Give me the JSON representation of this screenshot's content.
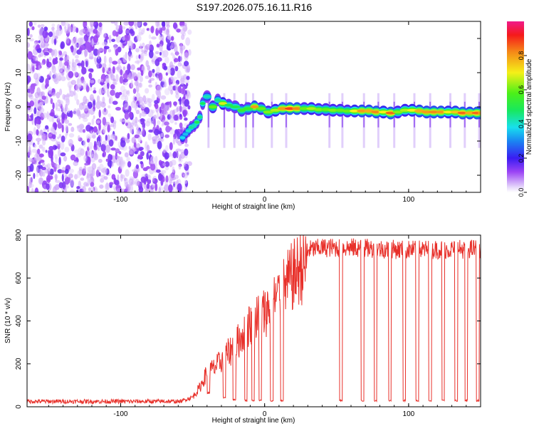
{
  "figure_title": "S197.2026.075.16.11.R16",
  "colors": {
    "snr_line": "#e8302a",
    "noise_purple": "#7a2cf0",
    "noise_light": "#dcc6fa",
    "axis": "#000000"
  },
  "chart_data": [
    {
      "type": "heatmap",
      "title": "",
      "xlabel": "Height of straight line (km)",
      "ylabel": "Frequency (Hz)",
      "xlim": [
        -165,
        150
      ],
      "ylim": [
        -25,
        25
      ],
      "x_ticks": [
        -100,
        0,
        100
      ],
      "x_tick_labels": [
        "-100",
        "0",
        "100"
      ],
      "y_ticks": [
        -20,
        -10,
        0,
        10,
        20
      ],
      "y_tick_labels": [
        "-20",
        "-10",
        "0",
        "10",
        "20"
      ],
      "noise_region_x": [
        -165,
        -60
      ],
      "transition_x": [
        -60,
        -40
      ],
      "ridge": [
        {
          "x": -58,
          "y": -9,
          "amp": 0.38
        },
        {
          "x": -56,
          "y": -8,
          "amp": 0.35
        },
        {
          "x": -54,
          "y": -7,
          "amp": 0.4
        },
        {
          "x": -52,
          "y": -6,
          "amp": 0.45
        },
        {
          "x": -50,
          "y": -5.5,
          "amp": 0.42
        },
        {
          "x": -48,
          "y": -4.5,
          "amp": 0.5
        },
        {
          "x": -46,
          "y": -3,
          "amp": 0.45
        },
        {
          "x": -44,
          "y": 1,
          "amp": 0.48
        },
        {
          "x": -42,
          "y": 3,
          "amp": 0.42
        },
        {
          "x": -38,
          "y": 0,
          "amp": 0.6
        },
        {
          "x": -34,
          "y": 2,
          "amp": 0.45
        },
        {
          "x": -31,
          "y": 1,
          "amp": 0.68
        },
        {
          "x": -27,
          "y": 0.5,
          "amp": 0.5
        },
        {
          "x": -23,
          "y": 0,
          "amp": 0.5
        },
        {
          "x": -18,
          "y": -1,
          "amp": 0.55
        },
        {
          "x": -14,
          "y": -0.5,
          "amp": 0.55
        },
        {
          "x": -9,
          "y": 0,
          "amp": 0.8
        },
        {
          "x": -5,
          "y": -0.5,
          "amp": 0.6
        },
        {
          "x": 0,
          "y": -1.5,
          "amp": 0.62
        },
        {
          "x": 5,
          "y": -1,
          "amp": 0.65
        },
        {
          "x": 10,
          "y": -0.5,
          "amp": 0.8
        },
        {
          "x": 15,
          "y": -0.5,
          "amp": 0.88
        },
        {
          "x": 20,
          "y": -0.5,
          "amp": 0.82
        },
        {
          "x": 25,
          "y": -0.5,
          "amp": 0.6
        },
        {
          "x": 30,
          "y": -0.5,
          "amp": 0.65
        },
        {
          "x": 35,
          "y": -0.8,
          "amp": 0.62
        },
        {
          "x": 40,
          "y": -0.8,
          "amp": 0.6
        },
        {
          "x": 45,
          "y": -1,
          "amp": 0.62
        },
        {
          "x": 50,
          "y": -1,
          "amp": 0.6
        },
        {
          "x": 55,
          "y": -1.2,
          "amp": 0.6
        },
        {
          "x": 60,
          "y": -1.2,
          "amp": 0.7
        },
        {
          "x": 65,
          "y": -1.2,
          "amp": 0.8
        },
        {
          "x": 70,
          "y": -1.2,
          "amp": 0.78
        },
        {
          "x": 75,
          "y": -1.5,
          "amp": 0.82
        },
        {
          "x": 80,
          "y": -1.5,
          "amp": 0.7
        },
        {
          "x": 85,
          "y": -1.8,
          "amp": 0.85
        },
        {
          "x": 90,
          "y": -1.5,
          "amp": 0.62
        },
        {
          "x": 95,
          "y": -1,
          "amp": 0.65
        },
        {
          "x": 100,
          "y": -1,
          "amp": 0.7
        },
        {
          "x": 105,
          "y": -1.2,
          "amp": 0.78
        },
        {
          "x": 110,
          "y": -1.5,
          "amp": 0.8
        },
        {
          "x": 115,
          "y": -1.5,
          "amp": 0.82
        },
        {
          "x": 120,
          "y": -1.5,
          "amp": 0.8
        },
        {
          "x": 125,
          "y": -1.5,
          "amp": 0.7
        },
        {
          "x": 130,
          "y": -1.5,
          "amp": 0.75
        },
        {
          "x": 135,
          "y": -1.8,
          "amp": 0.85
        },
        {
          "x": 140,
          "y": -1.8,
          "amp": 0.78
        },
        {
          "x": 145,
          "y": -1.8,
          "amp": 0.85
        },
        {
          "x": 150,
          "y": -1.8,
          "amp": 0.8
        }
      ],
      "dropouts_x": [
        -39,
        -28,
        -21,
        -13,
        -8,
        5,
        15,
        45,
        54,
        69,
        79,
        90,
        104,
        115,
        129,
        139,
        149
      ],
      "colorbar": {
        "label": "Normalized spectral amplitude",
        "range": [
          0,
          1
        ],
        "ticks": [
          0.0,
          0.2,
          0.4,
          0.6,
          0.8
        ],
        "tick_labels": [
          "0.0",
          "0.2",
          "0.4",
          "0.6",
          "0.8"
        ]
      }
    },
    {
      "type": "line",
      "title": "",
      "xlabel": "Height of straight line (km)",
      "ylabel": "SNR (10 * v/v)",
      "xlim": [
        -165,
        150
      ],
      "ylim": [
        0,
        800
      ],
      "x_ticks": [
        -100,
        0,
        100
      ],
      "x_tick_labels": [
        "-100",
        "0",
        "100"
      ],
      "y_ticks": [
        0,
        200,
        400,
        600,
        800
      ],
      "y_tick_labels": [
        "0",
        "200",
        "400",
        "600",
        "800"
      ],
      "envelope": [
        {
          "x": -165,
          "y": 25
        },
        {
          "x": -60,
          "y": 25
        },
        {
          "x": -50,
          "y": 50
        },
        {
          "x": -45,
          "y": 100
        },
        {
          "x": -40,
          "y": 180
        },
        {
          "x": -35,
          "y": 200
        },
        {
          "x": -30,
          "y": 240
        },
        {
          "x": -25,
          "y": 280
        },
        {
          "x": -20,
          "y": 320
        },
        {
          "x": -15,
          "y": 380
        },
        {
          "x": -10,
          "y": 430
        },
        {
          "x": -5,
          "y": 460
        },
        {
          "x": 0,
          "y": 490
        },
        {
          "x": 5,
          "y": 530
        },
        {
          "x": 10,
          "y": 580
        },
        {
          "x": 15,
          "y": 630
        },
        {
          "x": 20,
          "y": 680
        },
        {
          "x": 25,
          "y": 720
        },
        {
          "x": 30,
          "y": 740
        },
        {
          "x": 40,
          "y": 750
        },
        {
          "x": 60,
          "y": 750
        },
        {
          "x": 100,
          "y": 740
        },
        {
          "x": 150,
          "y": 745
        }
      ],
      "dropouts": [
        {
          "x": -39,
          "w": 2,
          "floor": 60
        },
        {
          "x": -28,
          "w": 2,
          "floor": 40
        },
        {
          "x": -21,
          "w": 2,
          "floor": 30
        },
        {
          "x": -13,
          "w": 2,
          "floor": 25
        },
        {
          "x": -8,
          "w": 2,
          "floor": 25
        },
        {
          "x": -3,
          "w": 2,
          "floor": 25
        },
        {
          "x": 5,
          "w": 2,
          "floor": 25
        },
        {
          "x": 12,
          "w": 2,
          "floor": 25
        },
        {
          "x": 53,
          "w": 2,
          "floor": 25
        },
        {
          "x": 68,
          "w": 2,
          "floor": 25
        },
        {
          "x": 77,
          "w": 2,
          "floor": 25
        },
        {
          "x": 87,
          "w": 2,
          "floor": 25
        },
        {
          "x": 97,
          "w": 2,
          "floor": 25
        },
        {
          "x": 106,
          "w": 2,
          "floor": 25
        },
        {
          "x": 115,
          "w": 2,
          "floor": 25
        },
        {
          "x": 124,
          "w": 2,
          "floor": 25
        },
        {
          "x": 133,
          "w": 2,
          "floor": 25
        },
        {
          "x": 140,
          "w": 2,
          "floor": 25
        },
        {
          "x": 148,
          "w": 2,
          "floor": 25
        }
      ]
    }
  ]
}
